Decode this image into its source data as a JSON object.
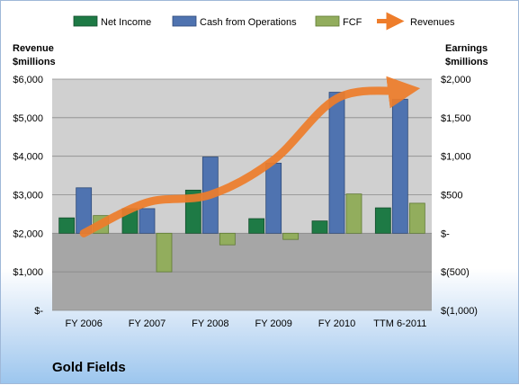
{
  "chart_data": {
    "type": "bar",
    "title": "Gold Fields",
    "categories": [
      "FY 2006",
      "FY 2007",
      "FY 2008",
      "FY 2009",
      "FY 2010",
      "TTM 6-2011"
    ],
    "left_axis": {
      "label_line1": "Revenue",
      "label_line2": "$millions",
      "ylim": [
        0,
        6000
      ],
      "ticks": [
        0,
        1000,
        2000,
        3000,
        4000,
        5000,
        6000
      ],
      "tick_labels": [
        "$-",
        "$1,000",
        "$2,000",
        "$3,000",
        "$4,000",
        "$5,000",
        "$6,000"
      ]
    },
    "right_axis": {
      "label_line1": "Earnings",
      "label_line2": "$millions",
      "ylim": [
        -1000,
        2000
      ],
      "ticks": [
        -1000,
        -500,
        0,
        500,
        1000,
        1500,
        2000
      ],
      "tick_labels": [
        "$(1,000)",
        "$(500)",
        "$-",
        "$500",
        "$1,000",
        "$1,500",
        "$2,000"
      ]
    },
    "series": [
      {
        "name": "Net Income",
        "axis": "right",
        "color": "#1e7a45",
        "values": [
          200,
          320,
          560,
          190,
          160,
          330
        ]
      },
      {
        "name": "Cash from Operations",
        "axis": "right",
        "color": "#4f73b0",
        "values": [
          590,
          320,
          990,
          910,
          1830,
          1740
        ]
      },
      {
        "name": "FCF",
        "axis": "right",
        "color": "#92ad5d",
        "values": [
          230,
          -500,
          -150,
          -80,
          510,
          390
        ]
      },
      {
        "name": "Revenues",
        "axis": "left",
        "type": "line",
        "color": "#ee7d2b",
        "values": [
          2000,
          2800,
          3000,
          3900,
          5500,
          5700
        ]
      }
    ],
    "legend_placement": "top",
    "grid": true,
    "negative_region_color": "#a6a6a6",
    "positive_region_color": "#d0d0d0"
  }
}
